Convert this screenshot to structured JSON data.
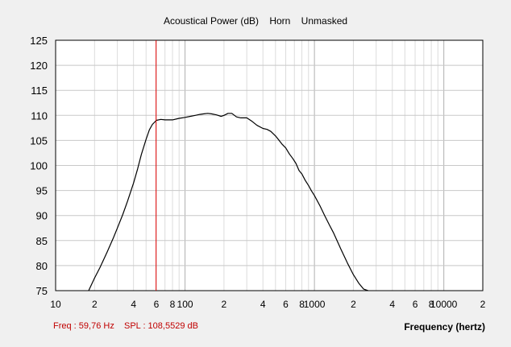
{
  "chart_data": {
    "type": "line",
    "title": "Acoustical Power (dB)    Horn    Unmasked",
    "xlabel": "Frequency (hertz)",
    "ylabel": "",
    "xscale": "log",
    "xlim": [
      10,
      20000
    ],
    "ylim": [
      75,
      125
    ],
    "y_ticks": [
      75,
      80,
      85,
      90,
      95,
      100,
      105,
      110,
      115,
      120,
      125
    ],
    "x_tick_labels": [
      {
        "value": 10,
        "label": "10"
      },
      {
        "value": 20,
        "label": "2"
      },
      {
        "value": 40,
        "label": "4"
      },
      {
        "value": 60,
        "label": "6"
      },
      {
        "value": 80,
        "label": "8"
      },
      {
        "value": 100,
        "label": "100"
      },
      {
        "value": 200,
        "label": "2"
      },
      {
        "value": 400,
        "label": "4"
      },
      {
        "value": 600,
        "label": "6"
      },
      {
        "value": 800,
        "label": "8"
      },
      {
        "value": 1000,
        "label": "1000"
      },
      {
        "value": 2000,
        "label": "2"
      },
      {
        "value": 4000,
        "label": "4"
      },
      {
        "value": 6000,
        "label": "6"
      },
      {
        "value": 8000,
        "label": "8"
      },
      {
        "value": 10000,
        "label": "10000"
      },
      {
        "value": 20000,
        "label": "2"
      }
    ],
    "grid": true,
    "series": [
      {
        "color": "#000000",
        "x": [
          18,
          20,
          22,
          25,
          28,
          30,
          33,
          36,
          40,
          43,
          46,
          50,
          53,
          56,
          58,
          60,
          65,
          70,
          80,
          90,
          100,
          110,
          120,
          130,
          140,
          150,
          160,
          175,
          190,
          200,
          215,
          230,
          250,
          270,
          300,
          330,
          360,
          400,
          430,
          460,
          500,
          530,
          560,
          600,
          640,
          680,
          720,
          760,
          800,
          850,
          900,
          950,
          1000,
          1100,
          1200,
          1300,
          1400,
          1500,
          1600,
          1800,
          2000,
          2200,
          2400,
          2600
        ],
        "values": [
          75,
          77.5,
          79.6,
          82.7,
          85.6,
          87.5,
          90.2,
          92.9,
          96.5,
          99.3,
          102.2,
          105.2,
          107.1,
          108.2,
          108.6,
          109.0,
          109.2,
          109.1,
          109.1,
          109.4,
          109.6,
          109.8,
          110.0,
          110.2,
          110.3,
          110.4,
          110.3,
          110.1,
          109.8,
          110.0,
          110.4,
          110.4,
          109.7,
          109.5,
          109.5,
          108.8,
          108.0,
          107.4,
          107.2,
          106.8,
          105.9,
          105.1,
          104.3,
          103.5,
          102.3,
          101.4,
          100.4,
          99.0,
          98.3,
          97.0,
          96.0,
          94.9,
          94.0,
          92.0,
          90.0,
          88.2,
          86.6,
          84.9,
          83.3,
          80.5,
          78.2,
          76.5,
          75.3,
          75.0
        ]
      }
    ],
    "cursor": {
      "x": 59.76,
      "color": "#e00000"
    }
  },
  "readout": {
    "freq": "Freq : 59,76 Hz",
    "spl": "SPL : 108,5529 dB"
  }
}
